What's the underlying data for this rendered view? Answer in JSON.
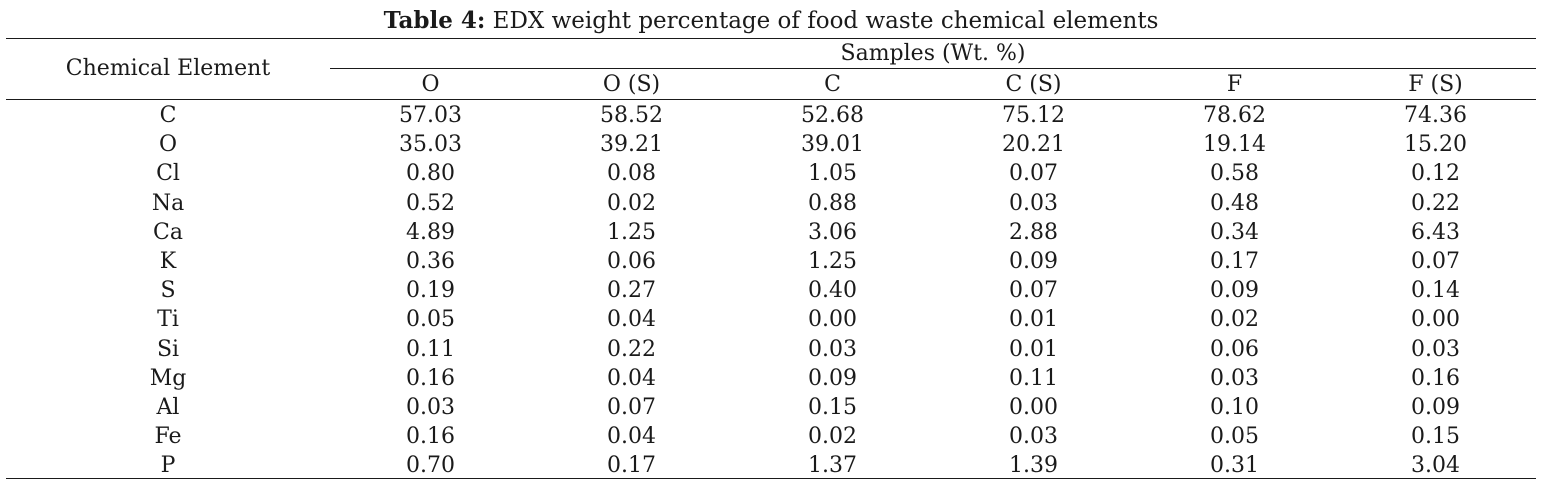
{
  "caption": {
    "label": "Table 4:",
    "text": "EDX weight percentage of food waste chemical elements"
  },
  "table": {
    "row_header": "Chemical Element",
    "group_header": "Samples (Wt. %)",
    "columns": [
      "O",
      "O (S)",
      "C",
      "C (S)",
      "F",
      "F (S)"
    ],
    "rows": [
      {
        "element": "C",
        "values": [
          "57.03",
          "58.52",
          "52.68",
          "75.12",
          "78.62",
          "74.36"
        ]
      },
      {
        "element": "O",
        "values": [
          "35.03",
          "39.21",
          "39.01",
          "20.21",
          "19.14",
          "15.20"
        ]
      },
      {
        "element": "Cl",
        "values": [
          "0.80",
          "0.08",
          "1.05",
          "0.07",
          "0.58",
          "0.12"
        ]
      },
      {
        "element": "Na",
        "values": [
          "0.52",
          "0.02",
          "0.88",
          "0.03",
          "0.48",
          "0.22"
        ]
      },
      {
        "element": "Ca",
        "values": [
          "4.89",
          "1.25",
          "3.06",
          "2.88",
          "0.34",
          "6.43"
        ]
      },
      {
        "element": "K",
        "values": [
          "0.36",
          "0.06",
          "1.25",
          "0.09",
          "0.17",
          "0.07"
        ]
      },
      {
        "element": "S",
        "values": [
          "0.19",
          "0.27",
          "0.40",
          "0.07",
          "0.09",
          "0.14"
        ]
      },
      {
        "element": "Ti",
        "values": [
          "0.05",
          "0.04",
          "0.00",
          "0.01",
          "0.02",
          "0.00"
        ]
      },
      {
        "element": "Si",
        "values": [
          "0.11",
          "0.22",
          "0.03",
          "0.01",
          "0.06",
          "0.03"
        ]
      },
      {
        "element": "Mg",
        "values": [
          "0.16",
          "0.04",
          "0.09",
          "0.11",
          "0.03",
          "0.16"
        ]
      },
      {
        "element": "Al",
        "values": [
          "0.03",
          "0.07",
          "0.15",
          "0.00",
          "0.10",
          "0.09"
        ]
      },
      {
        "element": "Fe",
        "values": [
          "0.16",
          "0.04",
          "0.02",
          "0.03",
          "0.05",
          "0.15"
        ]
      },
      {
        "element": "P",
        "values": [
          "0.70",
          "0.17",
          "1.37",
          "1.39",
          "0.31",
          "3.04"
        ]
      }
    ]
  }
}
